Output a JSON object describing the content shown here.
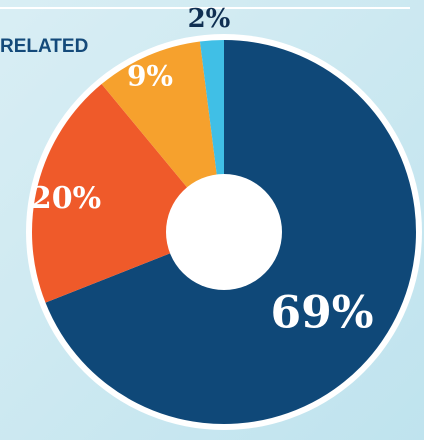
{
  "fragment_label": "RELATED",
  "chart_data": {
    "type": "pie",
    "values": [
      69,
      20,
      9,
      2
    ],
    "value_labels": [
      "69%",
      "20%",
      "9%",
      "2%"
    ],
    "colors": [
      "#0f4878",
      "#ef5a2a",
      "#f6a12d",
      "#40bfe6"
    ],
    "hole": true
  }
}
